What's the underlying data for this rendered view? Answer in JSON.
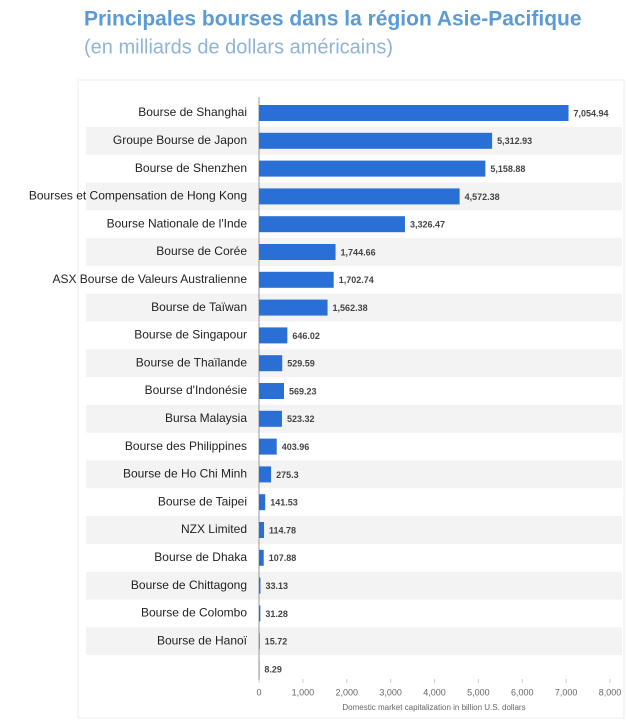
{
  "chart_data": {
    "type": "barh",
    "title": "Principales bourses dans la région Asie-Pacifique",
    "subtitle": "(en milliards de dollars américains)",
    "x_label": "Domestic market capitalization in billion U.S. dollars",
    "categories": [
      "Bourse de Shanghai",
      "Groupe Bourse de Japon",
      "Bourse de Shenzhen",
      "Bourses et Compensation de Hong Kong",
      "Bourse Nationale de l'Inde",
      "Bourse de Corée",
      "ASX Bourse de Valeurs Australienne",
      "Bourse de Taïwan",
      "Bourse de Singapour",
      "Bourse de Thaïlande",
      "Bourse d'Indonésie",
      "Bursa Malaysia",
      "Bourse des Philippines",
      "Bourse de Ho Chi Minh",
      "Bourse de Taipei",
      "NZX Limited",
      "Bourse de Dhaka",
      "Bourse de Chittagong",
      "Bourse de Colombo",
      "Bourse de Hanoï",
      null
    ],
    "values": [
      7054.94,
      5312.93,
      5158.88,
      4572.38,
      3326.47,
      1744.66,
      1702.74,
      1562.38,
      646.02,
      529.59,
      569.23,
      523.32,
      403.96,
      275.3,
      141.53,
      114.78,
      107.88,
      33.13,
      31.28,
      15.72,
      8.29
    ],
    "value_labels": [
      "7,054.94",
      "5,312.93",
      "5,158.88",
      "4,572.38",
      "3,326.47",
      "1,744.66",
      "1,702.74",
      "1,562.38",
      "646.02",
      "529.59",
      "569.23",
      "523.32",
      "403.96",
      "275.3",
      "141.53",
      "114.78",
      "107.88",
      "33.13",
      "31.28",
      "15.72",
      "8.29"
    ],
    "color": "#2a6fd6",
    "xlim": [
      0,
      8000
    ],
    "xticks": [
      0,
      {
        "value": 1000,
        "label": "1,000"
      },
      {
        "value": 2000,
        "label": "2,000"
      },
      {
        "value": 3000,
        "label": "3,000"
      },
      {
        "value": 4000,
        "label": "4,000"
      },
      {
        "value": 5000,
        "label": "5,000"
      },
      {
        "value": 6000,
        "label": "6,000"
      },
      {
        "value": 7000,
        "label": "7,000"
      },
      {
        "value": 8000,
        "label": "8,000"
      }
    ]
  }
}
